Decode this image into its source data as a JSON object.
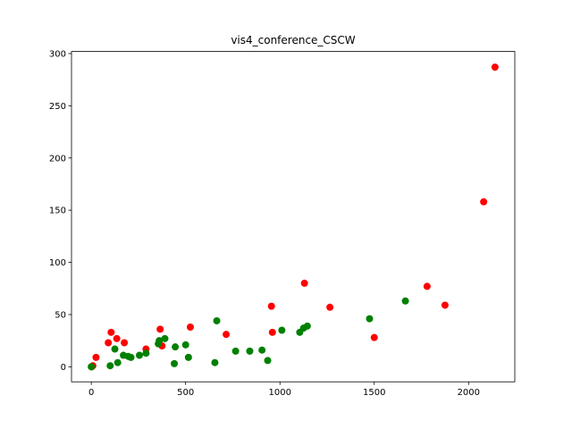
{
  "chart_data": {
    "type": "scatter",
    "title": "vis4_conference_CSCW",
    "xlabel": "",
    "ylabel": "",
    "xlim": [
      -105,
      2245
    ],
    "ylim": [
      -14.4,
      302
    ],
    "xticks": [
      0,
      500,
      1000,
      1500,
      2000
    ],
    "yticks": [
      0,
      50,
      100,
      150,
      200,
      250,
      300
    ],
    "grid": false,
    "series": [
      {
        "color": "#ff0000",
        "points": [
          [
            2,
            0
          ],
          [
            8,
            1
          ],
          [
            25,
            9
          ],
          [
            90,
            23
          ],
          [
            105,
            33
          ],
          [
            135,
            27
          ],
          [
            175,
            23
          ],
          [
            290,
            17
          ],
          [
            365,
            36
          ],
          [
            375,
            20
          ],
          [
            525,
            38
          ],
          [
            715,
            31
          ],
          [
            955,
            58
          ],
          [
            960,
            33
          ],
          [
            1130,
            80
          ],
          [
            1265,
            57
          ],
          [
            1500,
            28
          ],
          [
            1780,
            77
          ],
          [
            1875,
            59
          ],
          [
            2080,
            158
          ],
          [
            2140,
            287
          ]
        ]
      },
      {
        "color": "#008000",
        "points": [
          [
            0,
            0
          ],
          [
            100,
            1
          ],
          [
            125,
            17
          ],
          [
            140,
            4
          ],
          [
            170,
            11
          ],
          [
            195,
            10
          ],
          [
            210,
            9
          ],
          [
            255,
            11
          ],
          [
            290,
            13
          ],
          [
            355,
            22
          ],
          [
            360,
            25
          ],
          [
            390,
            27
          ],
          [
            440,
            3
          ],
          [
            445,
            19
          ],
          [
            500,
            21
          ],
          [
            515,
            9
          ],
          [
            655,
            4
          ],
          [
            665,
            44
          ],
          [
            765,
            15
          ],
          [
            840,
            15
          ],
          [
            905,
            16
          ],
          [
            935,
            6
          ],
          [
            1010,
            35
          ],
          [
            1105,
            33
          ],
          [
            1125,
            37
          ],
          [
            1145,
            39
          ],
          [
            1475,
            46
          ],
          [
            1665,
            63
          ]
        ]
      }
    ]
  }
}
